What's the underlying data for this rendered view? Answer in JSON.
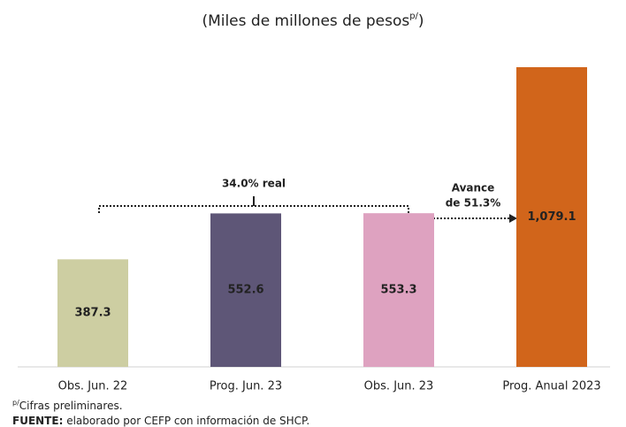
{
  "chart_data": {
    "type": "bar",
    "title": [
      "(Miles de millones de pesos",
      "p/",
      ")"
    ],
    "categories": [
      "Obs. Jun. 22",
      "Prog. Jun. 23",
      "Obs. Jun. 23",
      "Prog. Anual 2023"
    ],
    "values": [
      387.3,
      552.6,
      553.3,
      1079.1
    ],
    "value_labels": [
      "387.3",
      "552.6",
      "553.3",
      "1,079.1"
    ],
    "colors": [
      "#cdcea2",
      "#5e5677",
      "#dea2c0",
      "#d1651b"
    ],
    "annotations": {
      "bracket": "34.0% real",
      "arrow": [
        "Avance",
        "de 51.3%"
      ]
    },
    "footnotes": [
      [
        "p/",
        "Cifras preliminares."
      ],
      [
        "FUENTE:",
        " elaborado por CEFP con información de SHCP."
      ]
    ]
  }
}
